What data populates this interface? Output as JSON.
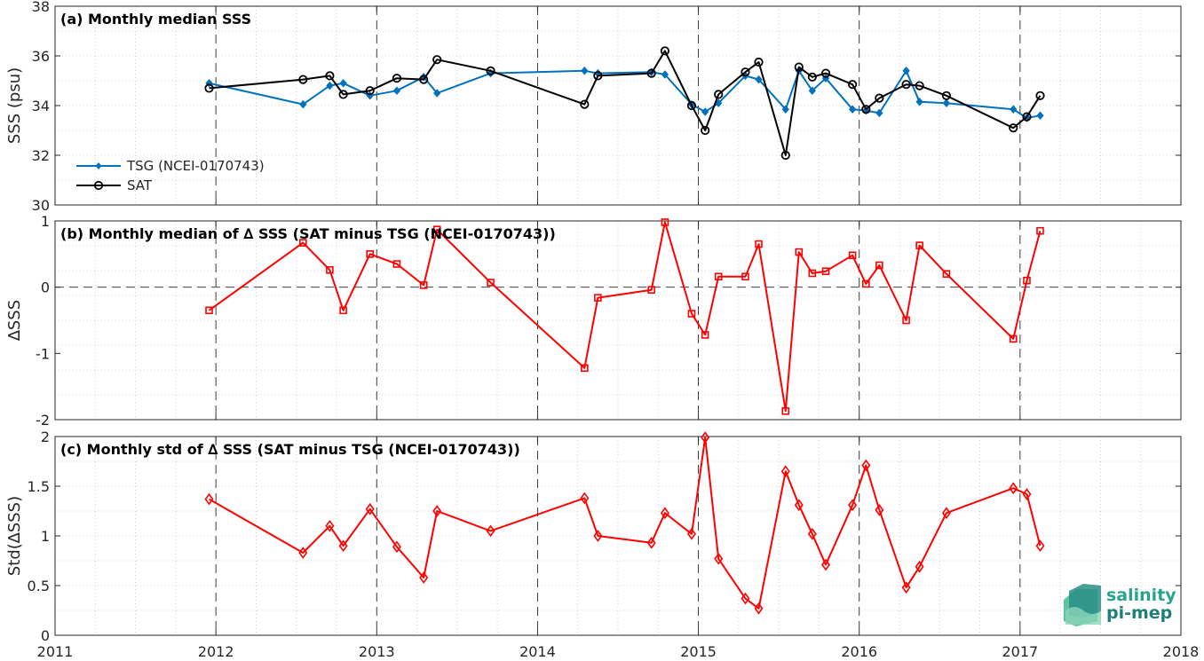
{
  "chart_data": [
    {
      "type": "line",
      "title": "(a) Monthly median SSS",
      "ylabel": "SSS (psu)",
      "xlim": [
        2011,
        2018
      ],
      "ylim": [
        30,
        38
      ],
      "yticks": [
        "30",
        "32",
        "34",
        "36",
        "38"
      ],
      "grid": "dotted minor grid, dashed major year lines",
      "legend_position": "bottom-left",
      "series": [
        {
          "name": "TSG (NCEI-0170743)",
          "color": "#0072bd",
          "marker": "diamond-filled",
          "x": [
            2011.958,
            2012.542,
            2012.708,
            2012.792,
            2012.958,
            2013.125,
            2013.292,
            2013.375,
            2013.708,
            2014.292,
            2014.375,
            2014.708,
            2014.792,
            2014.958,
            2015.042,
            2015.125,
            2015.292,
            2015.375,
            2015.542,
            2015.625,
            2015.708,
            2015.792,
            2015.958,
            2016.042,
            2016.125,
            2016.292,
            2016.375,
            2016.542,
            2016.958,
            2017.042,
            2017.125
          ],
          "y": [
            34.9,
            34.05,
            34.8,
            34.9,
            34.4,
            34.6,
            35.15,
            34.5,
            35.3,
            35.4,
            35.3,
            35.35,
            35.25,
            34.05,
            33.75,
            34.1,
            35.2,
            35.05,
            33.85,
            35.4,
            34.6,
            35.1,
            33.85,
            33.8,
            33.7,
            35.4,
            34.15,
            34.1,
            33.85,
            33.5,
            33.6
          ]
        },
        {
          "name": "SAT",
          "color": "#000000",
          "marker": "circle-open",
          "x": [
            2011.958,
            2012.542,
            2012.708,
            2012.792,
            2012.958,
            2013.125,
            2013.292,
            2013.375,
            2013.708,
            2014.292,
            2014.375,
            2014.708,
            2014.792,
            2014.958,
            2015.042,
            2015.125,
            2015.292,
            2015.375,
            2015.542,
            2015.625,
            2015.708,
            2015.792,
            2015.958,
            2016.042,
            2016.125,
            2016.292,
            2016.375,
            2016.542,
            2016.958,
            2017.042,
            2017.125
          ],
          "y": [
            34.7,
            35.05,
            35.2,
            34.45,
            34.6,
            35.1,
            35.05,
            35.85,
            35.4,
            34.05,
            35.2,
            35.3,
            36.2,
            34,
            33,
            34.45,
            35.35,
            35.75,
            32,
            35.55,
            35.15,
            35.3,
            34.85,
            33.85,
            34.3,
            34.85,
            34.8,
            34.4,
            33.1,
            33.55,
            34.4
          ]
        }
      ]
    },
    {
      "type": "line",
      "title": "(b) Monthly median of ∆ SSS (SAT minus TSG (NCEI-0170743))",
      "ylabel": "∆SSS",
      "xlim": [
        2011,
        2018
      ],
      "ylim": [
        -2,
        1
      ],
      "yticks": [
        "-2",
        "-1",
        "0",
        "1"
      ],
      "zero_line": "dashed",
      "series": [
        {
          "name": "",
          "color": "#ff0000",
          "marker": "square-open",
          "x": [
            2011.958,
            2012.542,
            2012.708,
            2012.792,
            2012.958,
            2013.125,
            2013.292,
            2013.375,
            2013.708,
            2014.292,
            2014.375,
            2014.708,
            2014.792,
            2014.958,
            2015.042,
            2015.125,
            2015.292,
            2015.375,
            2015.542,
            2015.625,
            2015.708,
            2015.792,
            2015.958,
            2016.042,
            2016.125,
            2016.292,
            2016.375,
            2016.542,
            2016.958,
            2017.042,
            2017.125
          ],
          "y": [
            -0.35,
            0.67,
            0.26,
            -0.35,
            0.5,
            0.35,
            0.03,
            0.87,
            0.07,
            -1.22,
            -0.16,
            -0.04,
            0.98,
            -0.4,
            -0.72,
            0.16,
            0.16,
            0.65,
            -1.87,
            0.53,
            0.21,
            0.24,
            0.48,
            0.05,
            0.33,
            -0.5,
            0.63,
            0.2,
            -0.78,
            0.1,
            0.85
          ]
        }
      ]
    },
    {
      "type": "line",
      "title": "(c) Monthly std of ∆ SSS (SAT minus TSG (NCEI-0170743))",
      "ylabel": "Std(∆SSS)",
      "xlim": [
        2011,
        2018
      ],
      "ylim": [
        0,
        2
      ],
      "xticks": [
        "2011",
        "2012",
        "2013",
        "2014",
        "2015",
        "2016",
        "2017",
        "2018"
      ],
      "yticks": [
        "0",
        "0.5",
        "1",
        "1.5",
        "2"
      ],
      "series": [
        {
          "name": "",
          "color": "#ff0000",
          "marker": "diamond-open",
          "x": [
            2011.958,
            2012.542,
            2012.708,
            2012.792,
            2012.958,
            2013.125,
            2013.292,
            2013.375,
            2013.708,
            2014.292,
            2014.375,
            2014.708,
            2014.792,
            2014.958,
            2015.042,
            2015.125,
            2015.292,
            2015.375,
            2015.542,
            2015.625,
            2015.708,
            2015.792,
            2015.958,
            2016.042,
            2016.125,
            2016.292,
            2016.375,
            2016.542,
            2016.958,
            2017.042,
            2017.125
          ],
          "y": [
            1.37,
            0.83,
            1.1,
            0.9,
            1.27,
            0.89,
            0.58,
            1.25,
            1.05,
            1.38,
            1.0,
            0.93,
            1.23,
            1.02,
            1.99,
            0.77,
            0.37,
            0.27,
            1.65,
            1.31,
            1.02,
            0.71,
            1.31,
            1.71,
            1.26,
            0.48,
            0.69,
            1.23,
            1.48,
            1.42,
            0.9
          ]
        }
      ]
    }
  ],
  "logo": {
    "line1": "salinity",
    "line2": "pi-mep"
  }
}
